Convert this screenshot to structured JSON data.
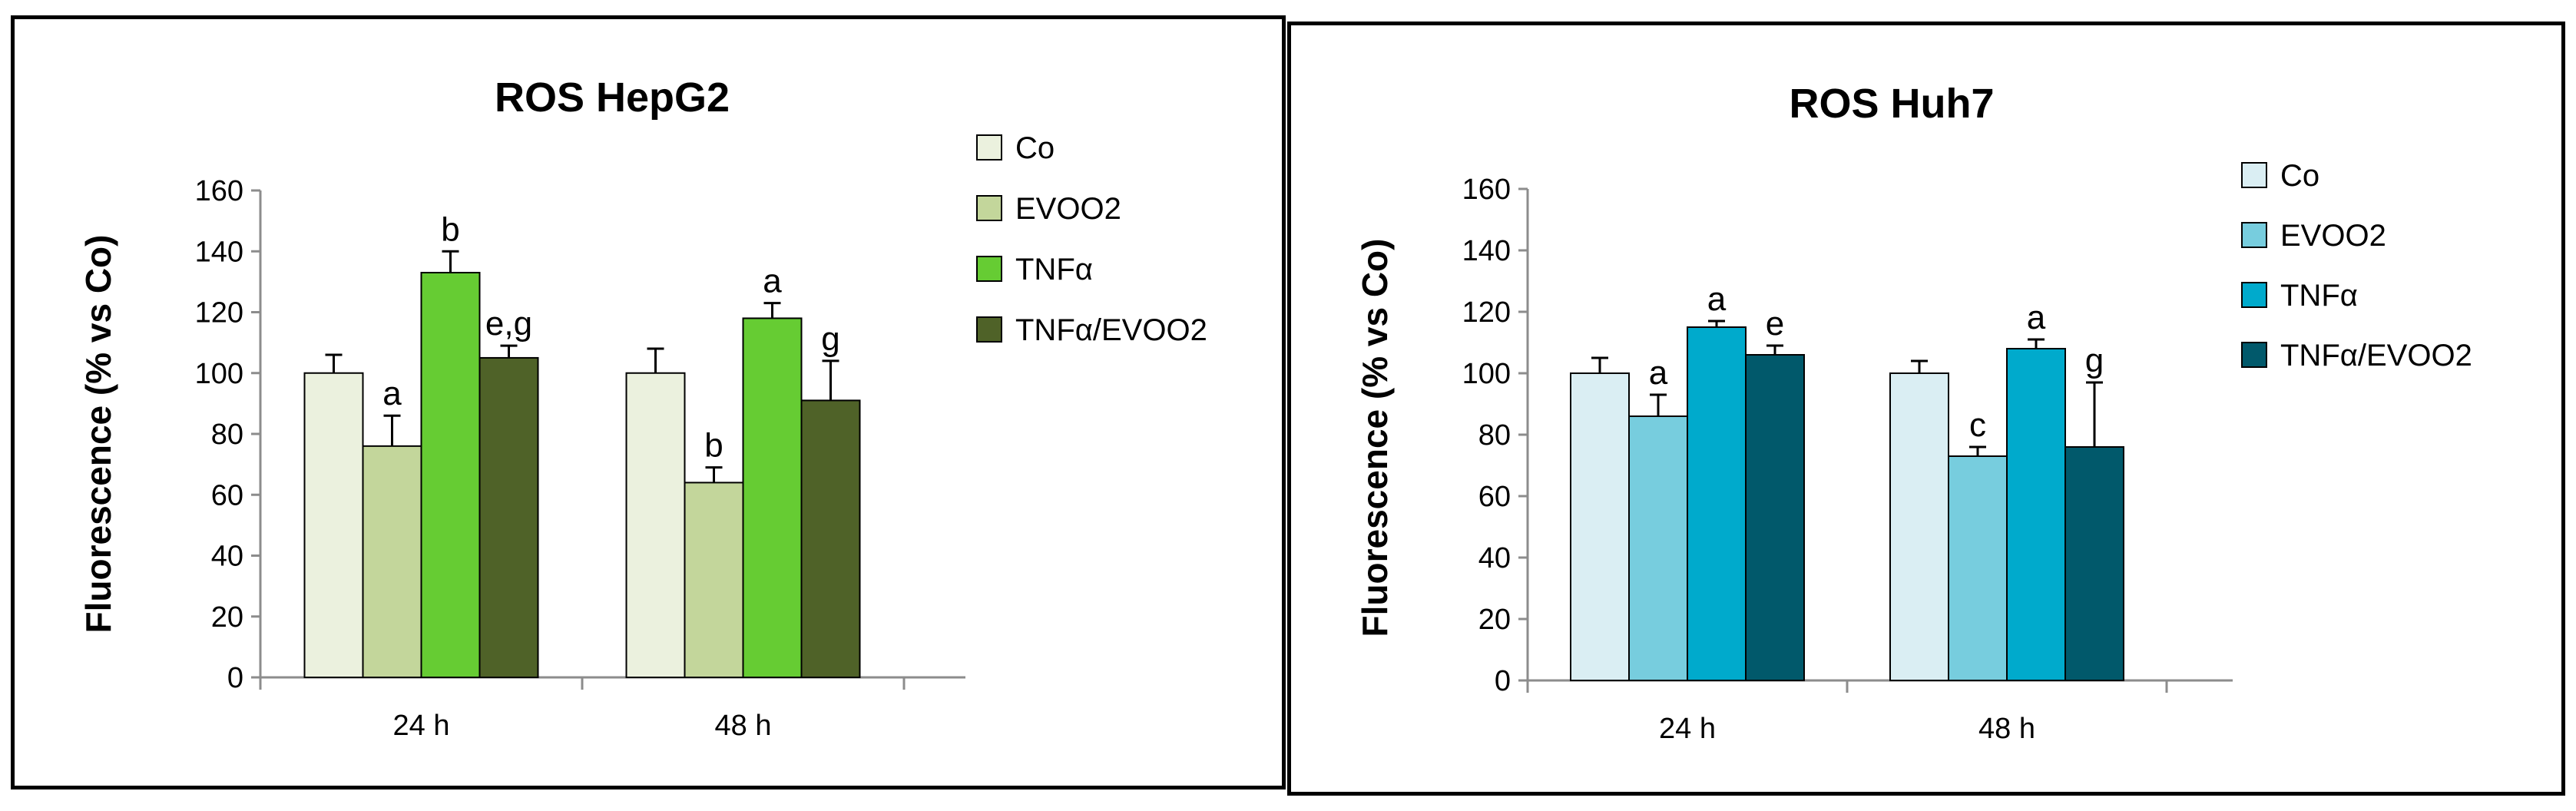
{
  "chart_data": [
    {
      "type": "bar",
      "title": "ROS HepG2",
      "ylabel": "Fluorescence (% vs Co)",
      "xlabel": "",
      "categories": [
        "24 h",
        "48 h"
      ],
      "ylim": [
        0,
        160
      ],
      "yticks": [
        0,
        20,
        40,
        60,
        80,
        100,
        120,
        140,
        160
      ],
      "grid": false,
      "legend": "right",
      "series": [
        {
          "name": "Co",
          "color": "#EBF1DE",
          "values": [
            100,
            100
          ],
          "errors": [
            6,
            8
          ],
          "labels": [
            "",
            ""
          ]
        },
        {
          "name": "EVOO2",
          "color": "#C3D69B",
          "values": [
            76,
            64
          ],
          "errors": [
            10,
            5
          ],
          "labels": [
            "a",
            "b"
          ]
        },
        {
          "name": "TNFα",
          "color": "#66CC33",
          "values": [
            133,
            118
          ],
          "errors": [
            7,
            5
          ],
          "labels": [
            "b",
            "a"
          ]
        },
        {
          "name": "TNFα/EVOO2",
          "color": "#4F6228",
          "values": [
            105,
            91
          ],
          "errors": [
            4,
            13
          ],
          "labels": [
            "e,g",
            "g"
          ]
        }
      ]
    },
    {
      "type": "bar",
      "title": "ROS Huh7",
      "ylabel": "Fluorescence (% vs Co)",
      "xlabel": "",
      "categories": [
        "24 h",
        "48 h"
      ],
      "ylim": [
        0,
        160
      ],
      "yticks": [
        0,
        20,
        40,
        60,
        80,
        100,
        120,
        140,
        160
      ],
      "grid": false,
      "legend": "right",
      "series": [
        {
          "name": "Co",
          "color": "#DAEEF3",
          "values": [
            100,
            100
          ],
          "errors": [
            5,
            4
          ],
          "labels": [
            "",
            ""
          ]
        },
        {
          "name": "EVOO2",
          "color": "#77CDDE",
          "values": [
            86,
            73
          ],
          "errors": [
            7,
            3
          ],
          "labels": [
            "a",
            "c"
          ]
        },
        {
          "name": "TNFα",
          "color": "#00AACC",
          "values": [
            115,
            108
          ],
          "errors": [
            2,
            3
          ],
          "labels": [
            "a",
            "a"
          ]
        },
        {
          "name": "TNFα/EVOO2",
          "color": "#01596B",
          "values": [
            106,
            76
          ],
          "errors": [
            3,
            21
          ],
          "labels": [
            "e",
            "g"
          ]
        }
      ]
    }
  ]
}
